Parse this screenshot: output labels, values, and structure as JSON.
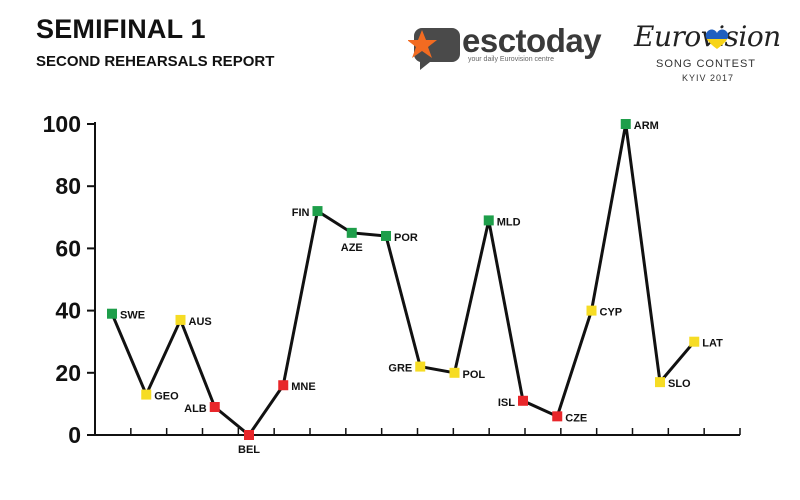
{
  "header": {
    "title": "SEMIFINAL 1",
    "subtitle": "SECOND REHEARSALS REPORT"
  },
  "logos": {
    "esctoday": {
      "name": "esctoday",
      "tagline": "your daily Eurovision centre"
    },
    "eurovision": {
      "name": "Eurovision",
      "line1": "SONG CONTEST",
      "line2": "KYIV 2017"
    }
  },
  "colors": {
    "green": "#1e9e4a",
    "yellow": "#f6dc24",
    "red": "#e8262a",
    "line": "#111111",
    "esc_orange": "#f26b21"
  },
  "chart_data": {
    "type": "line",
    "title": "SEMIFINAL 1",
    "subtitle": "SECOND REHEARSALS REPORT",
    "xlabel": "",
    "ylabel": "",
    "ylim": [
      0,
      100
    ],
    "yticks": [
      0,
      20,
      40,
      60,
      80,
      100
    ],
    "grid": false,
    "legend": "none",
    "categories": [
      "SWE",
      "GEO",
      "AUS",
      "ALB",
      "BEL",
      "MNE",
      "FIN",
      "AZE",
      "POR",
      "GRE",
      "POL",
      "MLD",
      "ISL",
      "CZE",
      "CYP",
      "ARM",
      "SLO",
      "LAT"
    ],
    "values": [
      39,
      13,
      37,
      9,
      0,
      16,
      72,
      65,
      64,
      22,
      20,
      69,
      11,
      6,
      40,
      100,
      17,
      30
    ],
    "status": [
      "green",
      "yellow",
      "yellow",
      "red",
      "red",
      "red",
      "green",
      "green",
      "green",
      "yellow",
      "yellow",
      "green",
      "red",
      "red",
      "yellow",
      "green",
      "yellow",
      "yellow"
    ],
    "label_pos": [
      "right",
      "right",
      "right",
      "left",
      "below",
      "right",
      "left",
      "below",
      "right",
      "left",
      "right",
      "right",
      "left",
      "right",
      "right",
      "right",
      "right",
      "right"
    ]
  }
}
